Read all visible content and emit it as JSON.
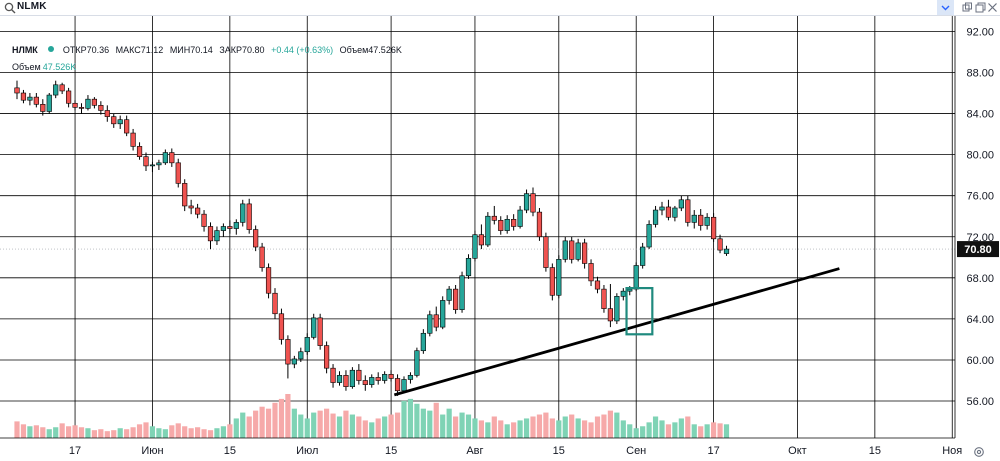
{
  "topbar": {
    "symbol_value": "NLMK",
    "icons": [
      "search-icon",
      "chevron-down-icon",
      "copy-icon",
      "restore-icon",
      "close-icon"
    ]
  },
  "legend": {
    "symbol": "НЛМК",
    "open": "ОТКР70.36",
    "high": "МАКС71.12",
    "low": "МИН70.14",
    "close": "ЗАКР70.80",
    "change": "+0.44 (+0.63%)",
    "volume": "Объем47.526K",
    "volume_label": "Объем",
    "volume_value": "47.526K"
  },
  "chart_data": {
    "type": "candlestick",
    "y_ticks": [
      "56.00",
      "60.00",
      "64.00",
      "68.00",
      "72.00",
      "76.00",
      "80.00",
      "84.00",
      "88.00",
      "92.00"
    ],
    "ylim": [
      52.4,
      93.5
    ],
    "x_labels": [
      "17",
      "Июн",
      "15",
      "Июл",
      "15",
      "Авг",
      "15",
      "Сен",
      "17",
      "Окт",
      "15",
      "Ноя"
    ],
    "x_label_index": [
      9,
      21,
      33,
      45,
      58,
      71,
      84,
      96,
      108,
      121,
      133,
      145
    ],
    "last_price": "70.80",
    "last_value": 70.8,
    "colors": {
      "up": "#26a69a",
      "down": "#ef5350",
      "vol_up": "#7fd3b5",
      "vol_down": "#f6a9a9",
      "box": "#1f8a7e"
    },
    "candles": [
      [
        86.5,
        87.2,
        85.4,
        86.0
      ],
      [
        86.0,
        86.3,
        85.0,
        85.3
      ],
      [
        85.3,
        86.0,
        84.8,
        85.6
      ],
      [
        85.6,
        86.0,
        84.6,
        84.9
      ],
      [
        84.9,
        85.4,
        83.8,
        84.2
      ],
      [
        84.2,
        86.0,
        84.0,
        85.8
      ],
      [
        85.8,
        87.2,
        85.5,
        86.8
      ],
      [
        86.8,
        87.0,
        85.9,
        86.2
      ],
      [
        86.2,
        86.5,
        84.6,
        85.0
      ],
      [
        85.0,
        85.3,
        84.3,
        84.6
      ],
      [
        84.6,
        85.0,
        84.0,
        84.5
      ],
      [
        84.5,
        85.8,
        84.3,
        85.4
      ],
      [
        85.4,
        85.6,
        84.5,
        84.8
      ],
      [
        84.8,
        85.2,
        83.9,
        84.3
      ],
      [
        84.3,
        84.8,
        83.2,
        83.7
      ],
      [
        83.7,
        84.0,
        82.6,
        83.0
      ],
      [
        83.0,
        83.8,
        82.5,
        83.4
      ],
      [
        83.4,
        83.8,
        81.8,
        82.1
      ],
      [
        82.1,
        82.5,
        80.4,
        80.8
      ],
      [
        80.8,
        81.2,
        79.5,
        79.8
      ],
      [
        79.8,
        80.2,
        78.4,
        78.9
      ],
      [
        78.9,
        79.3,
        78.3,
        79.0
      ],
      [
        79.0,
        79.5,
        78.5,
        79.2
      ],
      [
        79.2,
        80.5,
        79.0,
        80.2
      ],
      [
        80.2,
        80.6,
        78.8,
        79.2
      ],
      [
        79.2,
        79.6,
        76.8,
        77.2
      ],
      [
        77.2,
        77.6,
        74.5,
        75.0
      ],
      [
        75.0,
        75.6,
        74.2,
        74.8
      ],
      [
        74.8,
        75.2,
        73.8,
        74.2
      ],
      [
        74.2,
        74.6,
        72.5,
        73.0
      ],
      [
        73.0,
        73.4,
        70.8,
        71.6
      ],
      [
        71.6,
        73.0,
        71.2,
        72.6
      ],
      [
        72.6,
        73.3,
        72.0,
        73.0
      ],
      [
        73.0,
        73.6,
        72.3,
        72.8
      ],
      [
        72.8,
        73.7,
        72.2,
        73.4
      ],
      [
        73.4,
        75.6,
        73.0,
        75.2
      ],
      [
        75.2,
        75.7,
        72.3,
        72.7
      ],
      [
        72.7,
        73.1,
        70.6,
        71.0
      ],
      [
        71.0,
        71.4,
        68.6,
        69.0
      ],
      [
        69.0,
        69.4,
        66.0,
        66.5
      ],
      [
        66.5,
        67.0,
        64.0,
        64.5
      ],
      [
        64.5,
        65.0,
        61.5,
        62.0
      ],
      [
        62.0,
        62.4,
        58.2,
        59.6
      ],
      [
        59.6,
        60.4,
        59.2,
        60.1
      ],
      [
        60.1,
        61.2,
        59.8,
        60.8
      ],
      [
        60.8,
        62.6,
        60.5,
        62.2
      ],
      [
        62.2,
        64.5,
        62.0,
        64.1
      ],
      [
        64.1,
        64.5,
        61.0,
        61.4
      ],
      [
        61.4,
        61.8,
        58.7,
        59.2
      ],
      [
        59.2,
        59.6,
        57.3,
        57.8
      ],
      [
        57.8,
        58.9,
        57.5,
        58.5
      ],
      [
        58.5,
        59.0,
        57.0,
        57.4
      ],
      [
        57.4,
        59.3,
        57.2,
        59.0
      ],
      [
        59.0,
        59.6,
        57.6,
        58.0
      ],
      [
        58.0,
        58.5,
        57.0,
        57.6
      ],
      [
        57.6,
        58.6,
        57.3,
        58.3
      ],
      [
        58.3,
        58.8,
        57.6,
        58.0
      ],
      [
        58.0,
        58.9,
        57.7,
        58.6
      ],
      [
        58.6,
        59.0,
        57.9,
        58.2
      ],
      [
        58.2,
        58.6,
        56.5,
        57.0
      ],
      [
        57.0,
        58.4,
        56.8,
        58.1
      ],
      [
        58.1,
        58.8,
        57.7,
        58.5
      ],
      [
        58.5,
        61.2,
        58.3,
        60.9
      ],
      [
        60.9,
        63.0,
        60.6,
        62.6
      ],
      [
        62.6,
        64.8,
        62.3,
        64.4
      ],
      [
        64.4,
        65.2,
        62.8,
        63.2
      ],
      [
        63.2,
        66.2,
        63.0,
        65.8
      ],
      [
        65.8,
        67.2,
        65.4,
        66.9
      ],
      [
        66.9,
        67.3,
        64.5,
        64.9
      ],
      [
        64.9,
        68.6,
        64.6,
        68.2
      ],
      [
        68.2,
        70.3,
        67.9,
        69.9
      ],
      [
        69.9,
        72.6,
        69.6,
        72.2
      ],
      [
        72.2,
        73.2,
        70.8,
        71.2
      ],
      [
        71.2,
        74.4,
        71.0,
        74.0
      ],
      [
        74.0,
        75.0,
        73.2,
        73.6
      ],
      [
        73.6,
        74.0,
        72.2,
        72.6
      ],
      [
        72.6,
        74.1,
        72.3,
        73.7
      ],
      [
        73.7,
        74.2,
        72.6,
        73.0
      ],
      [
        73.0,
        75.0,
        72.8,
        74.6
      ],
      [
        74.6,
        76.6,
        74.3,
        76.2
      ],
      [
        76.2,
        76.8,
        74.0,
        74.4
      ],
      [
        74.4,
        74.8,
        71.6,
        72.0
      ],
      [
        72.0,
        72.4,
        68.6,
        69.0
      ],
      [
        69.0,
        69.4,
        65.8,
        66.3
      ],
      [
        66.3,
        70.2,
        66.0,
        69.8
      ],
      [
        69.8,
        72.0,
        69.5,
        71.6
      ],
      [
        71.6,
        72.0,
        69.4,
        69.8
      ],
      [
        69.8,
        71.8,
        69.6,
        71.4
      ],
      [
        71.4,
        71.8,
        68.9,
        69.4
      ],
      [
        69.4,
        69.8,
        67.2,
        67.7
      ],
      [
        67.7,
        68.1,
        66.5,
        66.9
      ],
      [
        66.9,
        67.3,
        64.6,
        65.0
      ],
      [
        65.0,
        67.4,
        63.2,
        63.8
      ],
      [
        63.8,
        66.5,
        63.5,
        66.2
      ],
      [
        66.2,
        67.0,
        65.8,
        66.7
      ],
      [
        66.7,
        67.2,
        66.3,
        66.9
      ],
      [
        66.9,
        69.5,
        66.7,
        69.2
      ],
      [
        69.2,
        71.4,
        68.9,
        71.0
      ],
      [
        71.0,
        73.6,
        70.8,
        73.2
      ],
      [
        73.2,
        75.0,
        72.9,
        74.6
      ],
      [
        74.6,
        75.4,
        74.1,
        74.9
      ],
      [
        74.9,
        75.6,
        73.6,
        73.9
      ],
      [
        73.9,
        75.0,
        73.5,
        74.8
      ],
      [
        74.8,
        76.0,
        74.5,
        75.6
      ],
      [
        75.6,
        76.0,
        73.0,
        73.4
      ],
      [
        73.4,
        74.6,
        72.8,
        74.1
      ],
      [
        74.1,
        74.7,
        72.6,
        73.1
      ],
      [
        73.1,
        74.3,
        72.7,
        73.9
      ],
      [
        73.9,
        74.3,
        71.5,
        71.8
      ],
      [
        71.8,
        72.2,
        70.4,
        70.7
      ],
      [
        70.36,
        71.12,
        70.14,
        70.8
      ]
    ],
    "volumes": [
      17,
      14,
      12,
      13,
      11,
      9,
      11,
      15,
      12,
      13,
      11,
      10,
      8,
      9,
      7,
      8,
      10,
      9,
      11,
      14,
      16,
      12,
      10,
      9,
      13,
      15,
      12,
      10,
      11,
      9,
      8,
      10,
      12,
      14,
      20,
      26,
      22,
      28,
      32,
      30,
      36,
      40,
      45,
      30,
      24,
      20,
      26,
      28,
      30,
      25,
      22,
      28,
      24,
      22,
      18,
      16,
      20,
      22,
      24,
      26,
      38,
      40,
      35,
      30,
      28,
      36,
      24,
      30,
      22,
      26,
      24,
      20,
      18,
      16,
      22,
      18,
      14,
      16,
      18,
      20,
      22,
      24,
      26,
      20,
      18,
      22,
      24,
      20,
      18,
      16,
      22,
      24,
      28,
      26,
      18,
      14,
      10,
      12,
      16,
      22,
      18,
      14,
      16,
      20,
      22,
      14,
      12,
      14,
      16,
      15,
      14
    ],
    "trendline": [
      [
        58.5,
        56.6
      ],
      [
        127.5,
        68.9
      ]
    ],
    "highlight": {
      "from": 94.5,
      "to": 98.5,
      "low": 62.5,
      "high": 67.0
    }
  }
}
